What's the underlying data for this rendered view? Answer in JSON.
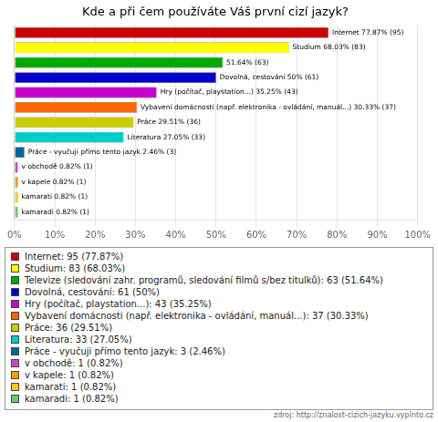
{
  "chart_data": {
    "type": "bar",
    "orientation": "horizontal",
    "title": "Kde a při čem používáte Váš první cizí jazyk?",
    "annotations": [
      "zdroj: http://znalost-cizich-jazyku.vyplnto.cz"
    ],
    "categories": [
      "Internet: 95 (77.87%)",
      "Studium: 83 (68.03%)",
      "Televize (sledování zahr. programů, sledování filmů s/bez titulků): 63 (51.64%)",
      "Dovolná, cestování: 61 (50%)",
      "Hry (počítač, playstation...): 43 (35.25%)",
      "Vybavení domácnosti (např. elektronika - ovládání, manuál...): 37 (30.33%)",
      "Práce: 36 (29.51%)",
      "Literatura: 33 (27.05%)",
      "Práce - vyučuji přímo tento jazyk: 3 (2.46%)",
      "v obchodě: 1 (0.82%)",
      "v kapele: 1 (0.82%)",
      "kamarati: 1 (0.82%)",
      "kamaradi: 1 (0.82%)"
    ],
    "values": [
      77.87,
      68.03,
      51.64,
      50.0,
      35.25,
      30.33,
      29.51,
      27.05,
      2.46,
      0.82,
      0.82,
      0.82,
      0.82
    ],
    "value_labels": [
      "Internet 77.87% (95)",
      "Studium 68.03% (83)",
      "51.64% (63)",
      "Dovolná, cestování 50% (61)",
      "Hry (počítač, playstation...) 35.25% (43)",
      "Vybavení domácnosti (např. elektronika - ovládání, manuál...) 30.33% (37)",
      "Práce 29.51% (36)",
      "Literatura 27.05% (33)",
      "Práce - vyučuji přímo tento jazyk 2.46% (3)",
      "v obchodě 0.82% (1)",
      "v kapele 0.82% (1)",
      "kamarati 0.82% (1)",
      "kamaradi 0.82% (1)"
    ],
    "colors": [
      "#cc0000",
      "#ffff00",
      "#00aa00",
      "#0000cc",
      "#cc00cc",
      "#ff6600",
      "#cccc00",
      "#00cccc",
      "#006699",
      "#cc44cc",
      "#ff9900",
      "#ffcc00",
      "#66cc66"
    ],
    "data_labels": true,
    "xlim": [
      0,
      100
    ],
    "xticks": [
      {
        "value": 0,
        "label": "0%"
      },
      {
        "value": 10,
        "label": "10%"
      },
      {
        "value": 20,
        "label": "20%"
      },
      {
        "value": 30,
        "label": "30%"
      },
      {
        "value": 40,
        "label": "40%"
      },
      {
        "value": 50,
        "label": "50%"
      },
      {
        "value": 60,
        "label": "60%"
      },
      {
        "value": 70,
        "label": "70%"
      },
      {
        "value": 80,
        "label": "80%"
      },
      {
        "value": 90,
        "label": "90%"
      },
      {
        "value": 100,
        "label": "100%"
      }
    ],
    "grid": true,
    "legend": "bottom",
    "tick_labels": "x"
  }
}
